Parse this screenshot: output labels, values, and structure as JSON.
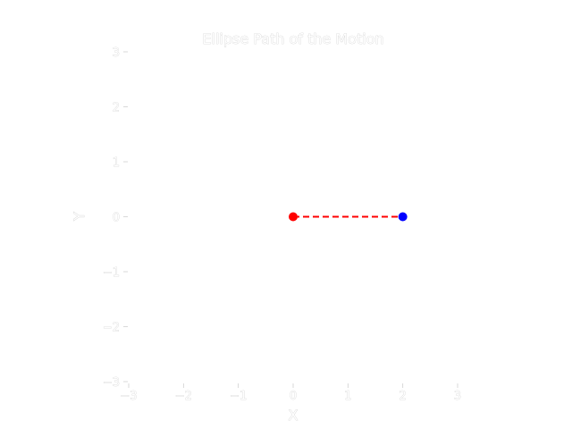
{
  "chart_data": {
    "type": "line",
    "title": "Ellipse Path of the Motion",
    "xlabel": "X",
    "ylabel": "Y",
    "xlim": [
      -3,
      3
    ],
    "ylim": [
      -3,
      3
    ],
    "xticks": [
      -3,
      -2,
      -1,
      0,
      1,
      2,
      3
    ],
    "yticks": [
      -3,
      -2,
      -1,
      0,
      1,
      2,
      3
    ],
    "xtick_labels": [
      "−3",
      "−2",
      "−1",
      "0",
      "1",
      "2",
      "3"
    ],
    "ytick_labels": [
      "−3",
      "−2",
      "−1",
      "0",
      "1",
      "2",
      "3"
    ],
    "grid": false,
    "series": [
      {
        "x": [
          0,
          2
        ],
        "y": [
          0,
          0
        ],
        "color": "#ff0000",
        "linestyle": "dashed"
      }
    ],
    "points": [
      {
        "x": 0,
        "y": 0,
        "color": "#ff0000"
      },
      {
        "x": 2,
        "y": 0,
        "color": "#0000ff"
      }
    ]
  }
}
